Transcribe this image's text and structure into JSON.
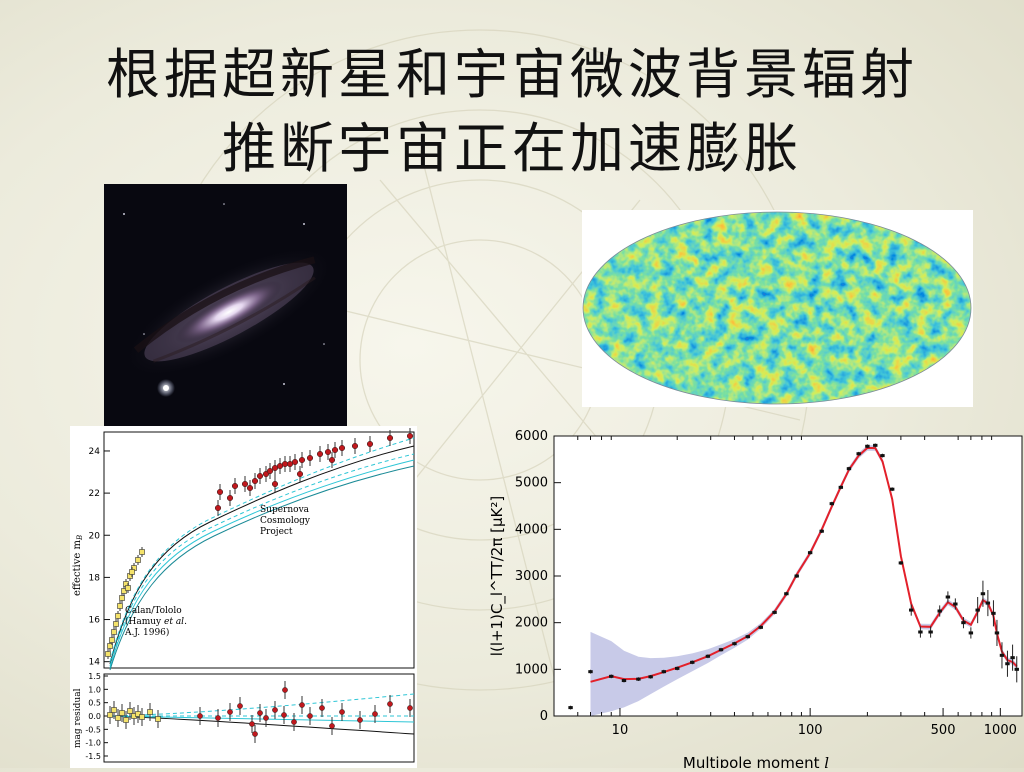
{
  "slide": {
    "title_line1": "根据超新星和宇宙微波背景辐射",
    "title_line2": "推断宇宙正在加速膨胀"
  },
  "colors": {
    "cmb_cold": "#13137a",
    "cmb_hot": "#d42a10",
    "sn_data": "#c0181d",
    "fit_line": "#e3202a",
    "fit_band": "#9a9ed6",
    "fit_curves": "#2ec6d6"
  },
  "supernova_plot": {
    "ylabel": "effective m",
    "ylabel_sub": "B",
    "ylabel_residual": "mag residual",
    "label_scp": [
      "Supernova",
      "Cosmology",
      "Project"
    ],
    "label_calan_l1": "Calan/Tololo",
    "label_calan_l2a": "(Hamuy ",
    "label_calan_l2b": "et al.",
    "label_calan_l3": "A.J. 1996)",
    "y_ticks": [
      "24",
      "22",
      "20",
      "18",
      "16",
      "14"
    ],
    "residual_ticks": [
      "1.5",
      "1.0",
      "0.5",
      "0.0",
      "-0.5",
      "-1.0",
      "-1.5"
    ]
  },
  "chart_data": {
    "type": "scatter",
    "title": "",
    "xlabel": "Multipole moment ",
    "xlabel_symbol": "l",
    "ylabel": "l(l+1)C_l^TT/2π [μK²]",
    "x_scale": "log",
    "xlim": [
      4.5,
      1300
    ],
    "ylim": [
      0,
      6000
    ],
    "x_ticks": [
      "10",
      "100",
      "500",
      "1000"
    ],
    "y_ticks": [
      "0",
      "1000",
      "2000",
      "3000",
      "4000",
      "5000",
      "6000"
    ],
    "grid": false,
    "series": [
      {
        "values": [
          [
            5.5,
            180
          ],
          [
            7,
            950
          ],
          [
            9,
            850
          ],
          [
            10.5,
            760
          ],
          [
            12.5,
            790
          ],
          [
            14.5,
            840
          ],
          [
            17,
            950
          ],
          [
            20,
            1020
          ],
          [
            24,
            1150
          ],
          [
            29,
            1280
          ],
          [
            34,
            1420
          ],
          [
            40,
            1550
          ],
          [
            47,
            1700
          ],
          [
            55,
            1900
          ],
          [
            65,
            2220
          ],
          [
            75,
            2620
          ],
          [
            85,
            3000
          ],
          [
            100,
            3500
          ],
          [
            115,
            3960
          ],
          [
            130,
            4550
          ],
          [
            145,
            4900
          ],
          [
            160,
            5300
          ],
          [
            180,
            5620
          ],
          [
            200,
            5780
          ],
          [
            220,
            5800
          ],
          [
            240,
            5580
          ],
          [
            270,
            4860
          ],
          [
            300,
            3280
          ],
          [
            340,
            2270
          ],
          [
            380,
            1800
          ],
          [
            430,
            1800
          ],
          [
            480,
            2250
          ],
          [
            530,
            2550
          ],
          [
            580,
            2400
          ],
          [
            640,
            2000
          ],
          [
            700,
            1780
          ],
          [
            760,
            2270
          ],
          [
            810,
            2620
          ],
          [
            860,
            2420
          ],
          [
            920,
            2200
          ],
          [
            960,
            1780
          ],
          [
            1020,
            1300
          ],
          [
            1090,
            1120
          ],
          [
            1160,
            1250
          ],
          [
            1220,
            1000
          ]
        ]
      }
    ]
  }
}
